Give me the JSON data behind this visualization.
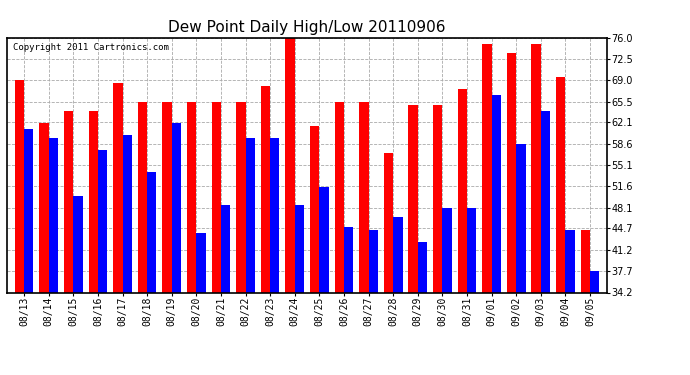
{
  "title": "Dew Point Daily High/Low 20110906",
  "copyright": "Copyright 2011 Cartronics.com",
  "dates": [
    "08/13",
    "08/14",
    "08/15",
    "08/16",
    "08/17",
    "08/18",
    "08/19",
    "08/20",
    "08/21",
    "08/22",
    "08/23",
    "08/24",
    "08/25",
    "08/26",
    "08/27",
    "08/28",
    "08/29",
    "08/30",
    "08/31",
    "09/01",
    "09/02",
    "09/03",
    "09/04",
    "09/05"
  ],
  "highs": [
    69.0,
    62.0,
    64.0,
    64.0,
    68.5,
    65.5,
    65.5,
    65.5,
    65.5,
    65.5,
    68.0,
    76.0,
    61.5,
    65.5,
    65.5,
    57.0,
    65.0,
    65.0,
    67.5,
    75.0,
    73.5,
    75.0,
    69.5,
    44.5
  ],
  "lows": [
    61.0,
    59.5,
    50.0,
    57.5,
    60.0,
    54.0,
    62.0,
    44.0,
    48.5,
    59.5,
    59.5,
    48.5,
    51.5,
    45.0,
    44.5,
    46.5,
    42.5,
    48.0,
    48.0,
    66.5,
    58.5,
    64.0,
    44.5,
    37.7
  ],
  "high_color": "#FF0000",
  "low_color": "#0000FF",
  "bg_color": "#FFFFFF",
  "plot_bg_color": "#FFFFFF",
  "grid_color": "#AAAAAA",
  "yticks": [
    34.2,
    37.7,
    41.2,
    44.7,
    48.1,
    51.6,
    55.1,
    58.6,
    62.1,
    65.5,
    69.0,
    72.5,
    76.0
  ],
  "ylim": [
    34.2,
    76.0
  ],
  "bar_width": 0.38,
  "title_fontsize": 11,
  "tick_fontsize": 7,
  "copyright_fontsize": 6.5
}
